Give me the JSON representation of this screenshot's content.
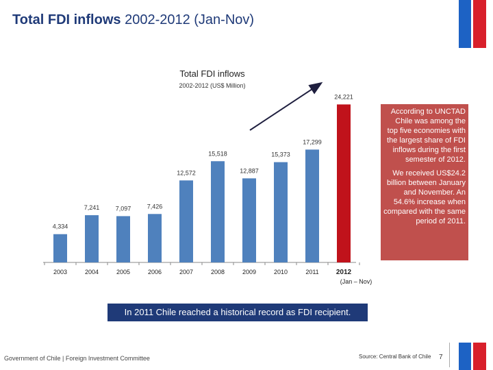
{
  "header": {
    "title_bold": "Total FDI inflows",
    "title_rest": " 2002-2012 (Jan-Nov)"
  },
  "chart_data": {
    "type": "bar",
    "title": "Total FDI inflows",
    "subtitle": "2002-2012 (US$ Million)",
    "categories": [
      "2003",
      "2004",
      "2005",
      "2006",
      "2007",
      "2008",
      "2009",
      "2010",
      "2011",
      "2012"
    ],
    "category_sublabels": [
      "",
      "",
      "",
      "",
      "",
      "",
      "",
      "",
      "",
      "(Jan – Nov)"
    ],
    "values": [
      4334,
      7241,
      7097,
      7426,
      12572,
      15518,
      12887,
      15373,
      17299,
      24221
    ],
    "value_labels": [
      "4,334",
      "7,241",
      "7,097",
      "7,426",
      "12,572",
      "15,518",
      "12,887",
      "15,373",
      "17,299",
      "24,221"
    ],
    "highlight_index": 9,
    "colors": {
      "bar": "#4f81bd",
      "highlight": "#c0121b",
      "arrow": "#1f1f3f"
    },
    "ylim": [
      0,
      25000
    ],
    "xlabel": "",
    "ylabel": ""
  },
  "note": {
    "paragraph1": "According to UNCTAD Chile was among the top five economies with the largest share of FDI inflows during the first semester of 2012.",
    "paragraph2": "We received US$24.2 billion between January and November. An 54.6% increase when compared with the same period of 2011."
  },
  "banner": {
    "text": "In 2011 Chile reached a historical record as FDI recipient."
  },
  "footer": {
    "left": "Government of Chile | Foreign Investment Committee",
    "source": "Source: Central Bank of Chile",
    "page_number": "7"
  },
  "colors": {
    "title": "#1f3a78",
    "note_bg": "#c0504d",
    "banner_bg": "#1f3a78"
  }
}
